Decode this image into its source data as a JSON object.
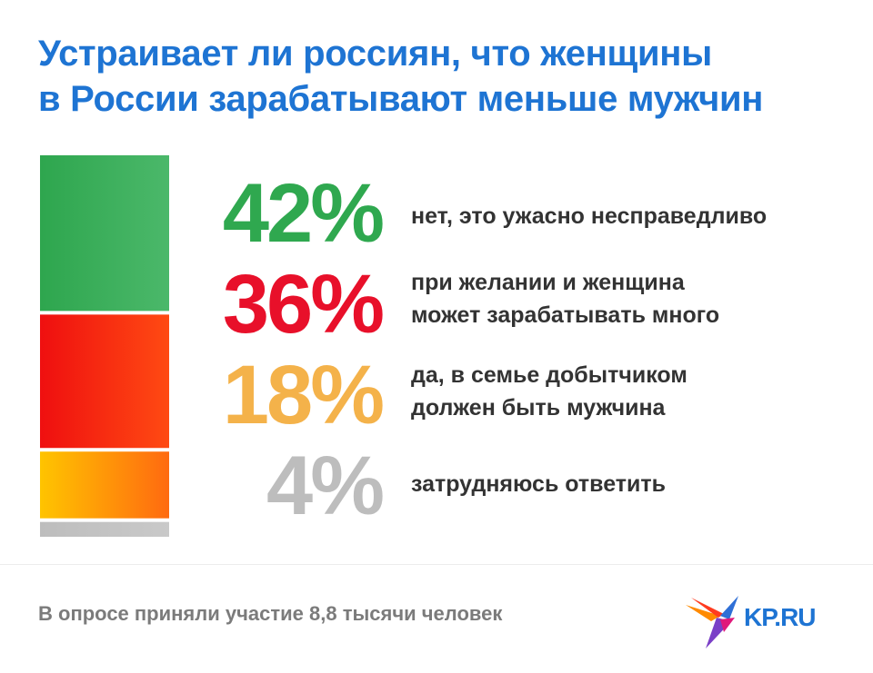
{
  "title": {
    "line1": "Устраивает ли россиян, что женщины",
    "line2": "в России зарабатывают меньше мужчин"
  },
  "chart_data": {
    "type": "bar",
    "orientation": "stacked-vertical",
    "title": "Устраивает ли россиян, что женщины в России зарабатывают меньше мужчин",
    "unit": "%",
    "items": [
      {
        "value": 42,
        "label": "42%",
        "text_line1": "нет, это ужасно несправедливо",
        "text_line2": "",
        "color": "#2fa84f",
        "color_light": "#49b869"
      },
      {
        "value": 36,
        "label": "36%",
        "text_line1": "при желании и женщина",
        "text_line2": "может зарабатывать много",
        "color": "#e8102a",
        "color_light": "#ff3d12"
      },
      {
        "value": 18,
        "label": "18%",
        "text_line1": "да, в семье добытчиком",
        "text_line2": "должен быть мужчина",
        "color": "#f4b24a",
        "color_light": "#ffbf00"
      },
      {
        "value": 4,
        "label": "4%",
        "text_line1": "затрудняюсь ответить",
        "text_line2": "",
        "color": "#bdbdbd",
        "color_light": "#c4c4c4"
      }
    ]
  },
  "footer": "В опросе приняли участие 8,8 тысячи человек",
  "logo": {
    "text": "KP.RU",
    "icon": "kp-bird-logo"
  }
}
